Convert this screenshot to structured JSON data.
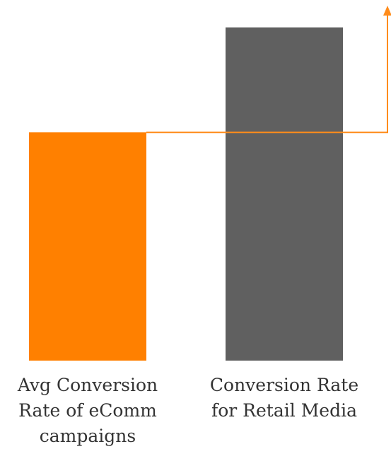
{
  "chart_data": {
    "type": "bar",
    "categories": [
      "Avg Conversion\nRate of eComm\ncampaigns",
      "Conversion Rate\nfor Retail Media"
    ],
    "values": [
      1.0,
      1.46
    ],
    "colors": [
      "#ff8000",
      "#606060"
    ],
    "ylim": [
      0,
      1.58
    ],
    "annotation": {
      "type": "arrow",
      "color": "#ff8c1a",
      "from_value": 1.0
    },
    "title": "",
    "xlabel": "",
    "ylabel": "",
    "grid": false,
    "legend": "none"
  }
}
